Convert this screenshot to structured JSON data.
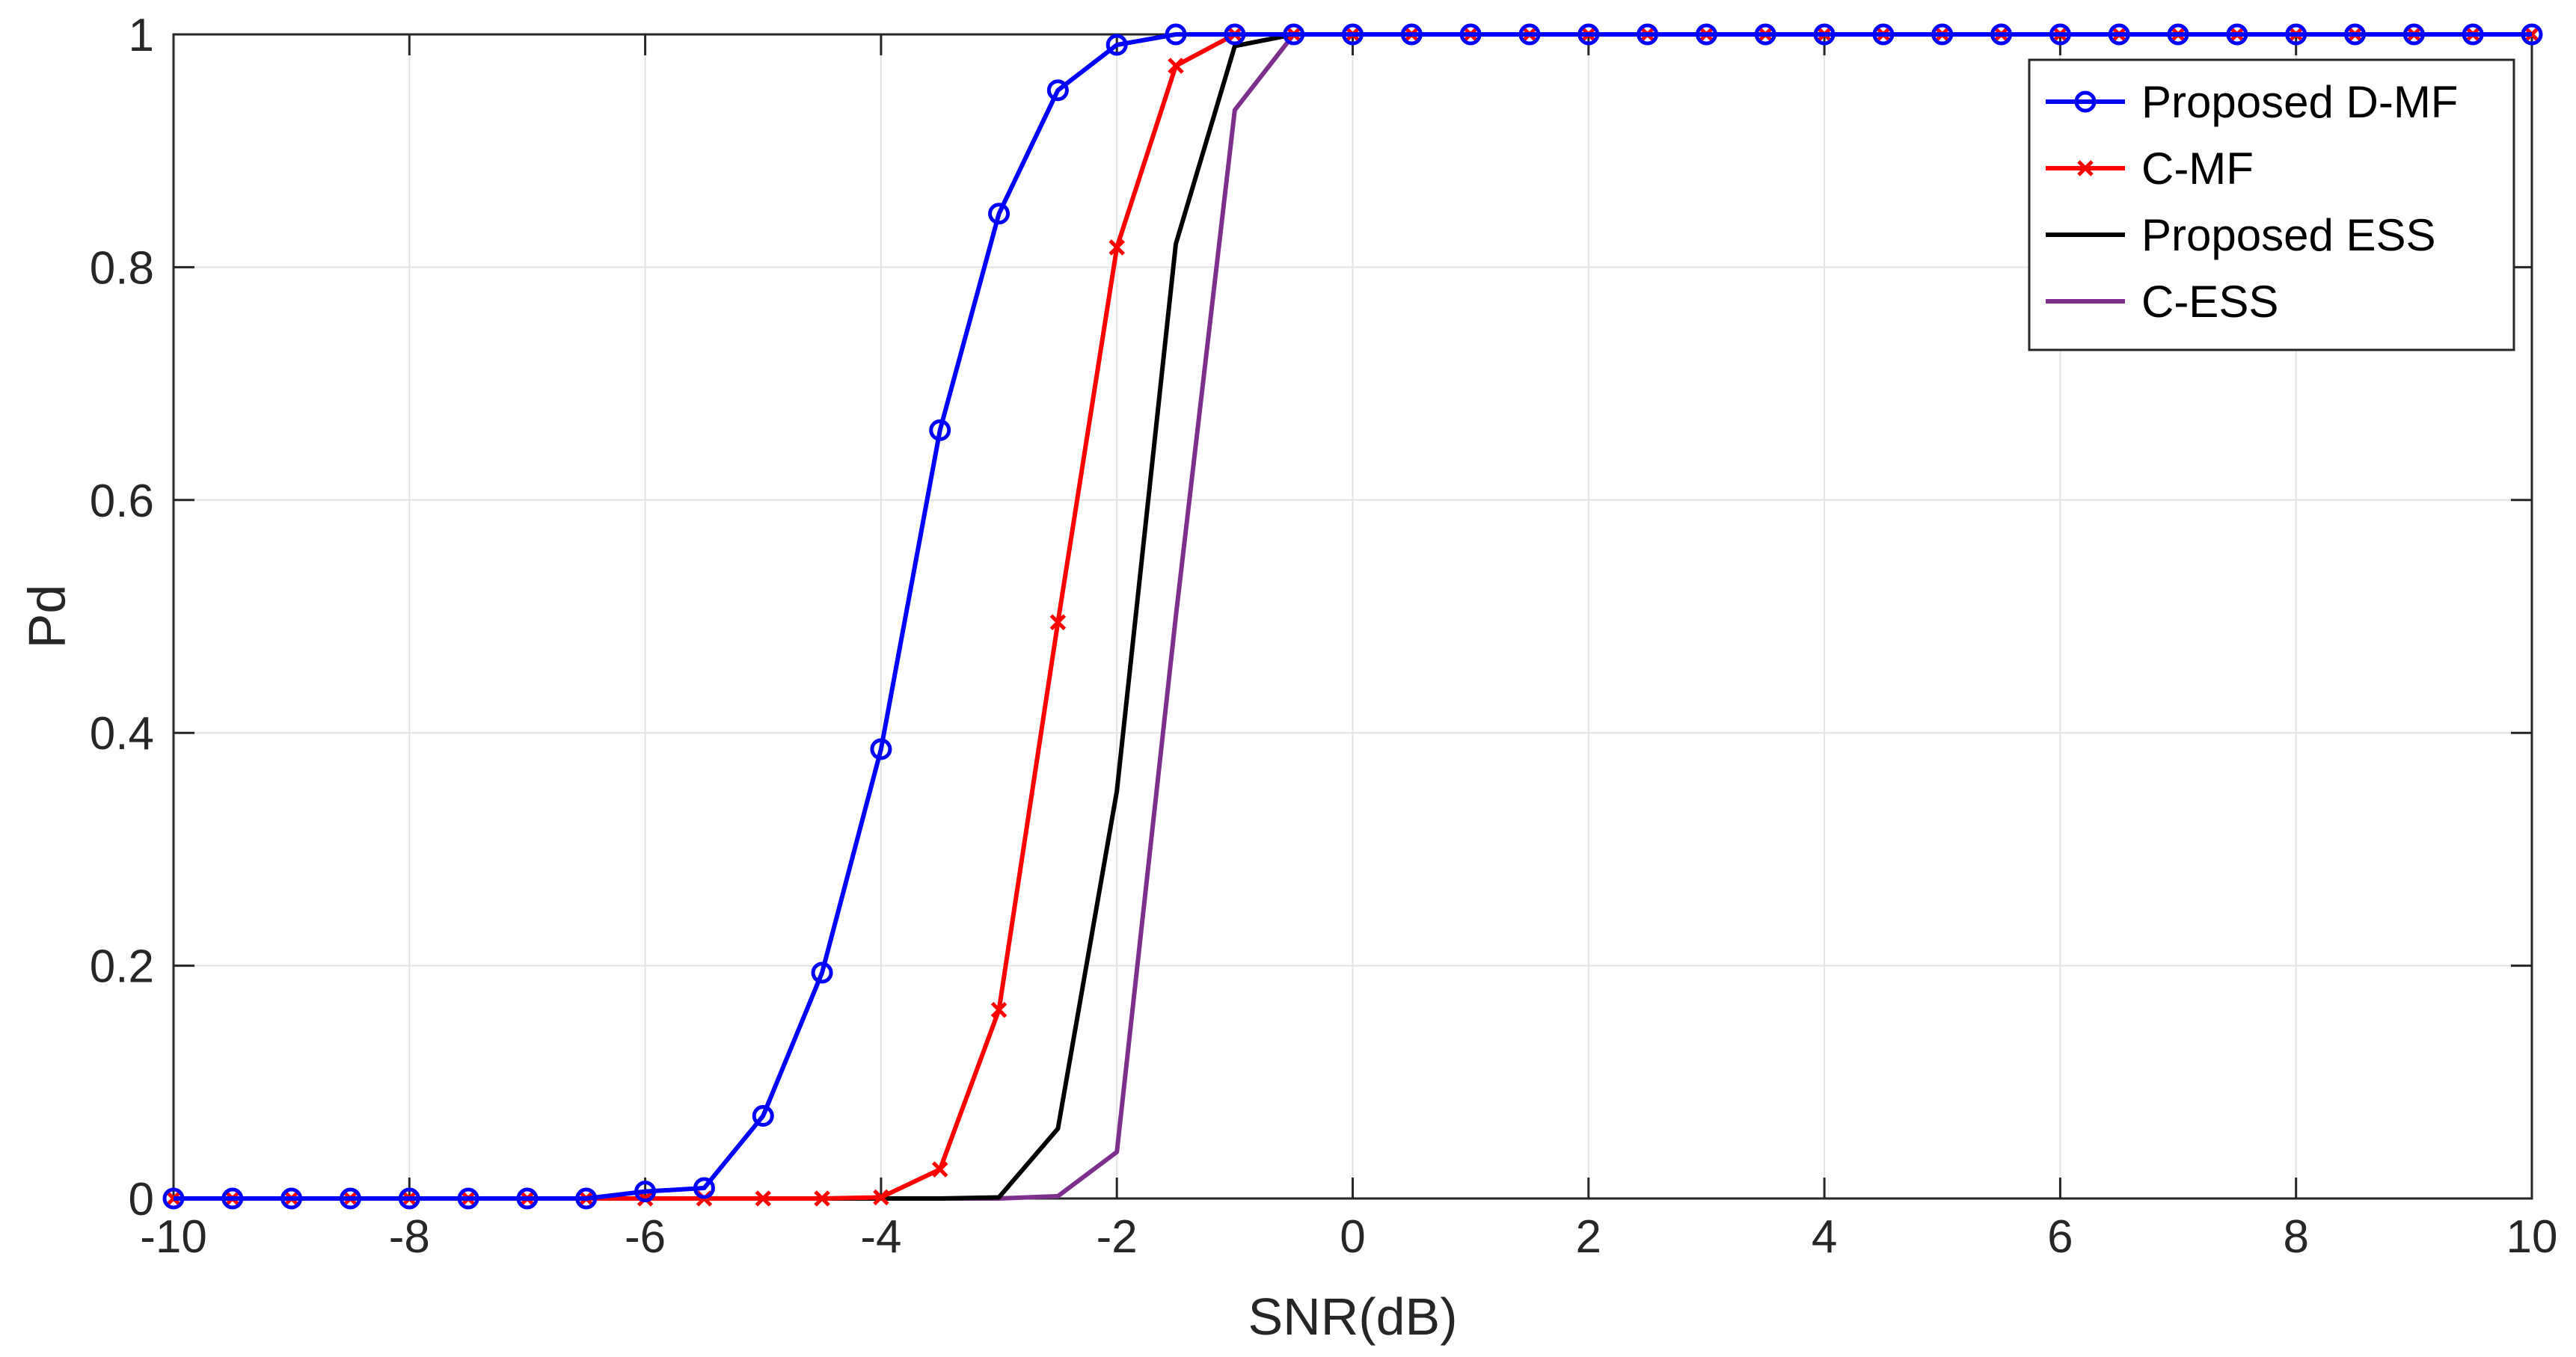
{
  "chart_data": {
    "type": "line",
    "title": "",
    "xlabel": "SNR(dB)",
    "ylabel": "Pd",
    "xlim": [
      -10,
      10
    ],
    "ylim": [
      0,
      1
    ],
    "xticks": [
      -10,
      -8,
      -6,
      -4,
      -2,
      0,
      2,
      4,
      6,
      8,
      10
    ],
    "yticks": [
      0,
      0.2,
      0.4,
      0.6,
      0.8,
      1
    ],
    "xtick_labels": [
      "-10",
      "-8",
      "-6",
      "-4",
      "-2",
      "0",
      "2",
      "4",
      "6",
      "8",
      "10"
    ],
    "ytick_labels": [
      "0",
      "0.2",
      "0.4",
      "0.6",
      "0.8",
      "1"
    ],
    "grid": true,
    "legend_position": "top-right",
    "x": [
      -10,
      -9.5,
      -9,
      -8.5,
      -8,
      -7.5,
      -7,
      -6.5,
      -6,
      -5.5,
      -5,
      -4.5,
      -4,
      -3.5,
      -3,
      -2.5,
      -2,
      -1.5,
      -1,
      -0.5,
      0,
      0.5,
      1,
      1.5,
      2,
      2.5,
      3,
      3.5,
      4,
      4.5,
      5,
      5.5,
      6,
      6.5,
      7,
      7.5,
      8,
      8.5,
      9,
      9.5,
      10
    ],
    "series": [
      {
        "name": "Proposed D-MF",
        "color": "#0000ff",
        "marker": "circle",
        "values": [
          0,
          0,
          0,
          0,
          0,
          0,
          0,
          0,
          0.006,
          0.009,
          0.071,
          0.194,
          0.386,
          0.66,
          0.846,
          0.952,
          0.991,
          1,
          1,
          1,
          1,
          1,
          1,
          1,
          1,
          1,
          1,
          1,
          1,
          1,
          1,
          1,
          1,
          1,
          1,
          1,
          1,
          1,
          1,
          1,
          1
        ]
      },
      {
        "name": "C-MF",
        "color": "#ff0000",
        "marker": "x",
        "values": [
          0,
          0,
          0,
          0,
          0,
          0,
          0,
          0,
          0,
          0,
          0,
          0,
          0.001,
          0.025,
          0.162,
          0.495,
          0.817,
          0.973,
          1,
          1,
          1,
          1,
          1,
          1,
          1,
          1,
          1,
          1,
          1,
          1,
          1,
          1,
          1,
          1,
          1,
          1,
          1,
          1,
          1,
          1,
          1
        ]
      },
      {
        "name": "Proposed ESS",
        "color": "#000000",
        "marker": "none",
        "values": [
          0,
          0,
          0,
          0,
          0,
          0,
          0,
          0,
          0,
          0,
          0,
          0,
          0,
          0,
          0.001,
          0.06,
          0.35,
          0.82,
          0.99,
          1,
          1,
          1,
          1,
          1,
          1,
          1,
          1,
          1,
          1,
          1,
          1,
          1,
          1,
          1,
          1,
          1,
          1,
          1,
          1,
          1,
          1
        ]
      },
      {
        "name": "C-ESS",
        "color": "#7e2f8e",
        "marker": "none",
        "values": [
          0,
          0,
          0,
          0,
          0,
          0,
          0,
          0,
          0,
          0,
          0,
          0,
          0,
          0,
          0,
          0.002,
          0.04,
          0.5,
          0.935,
          1,
          1,
          1,
          1,
          1,
          1,
          1,
          1,
          1,
          1,
          1,
          1,
          1,
          1,
          1,
          1,
          1,
          1,
          1,
          1,
          1,
          1
        ]
      }
    ]
  }
}
